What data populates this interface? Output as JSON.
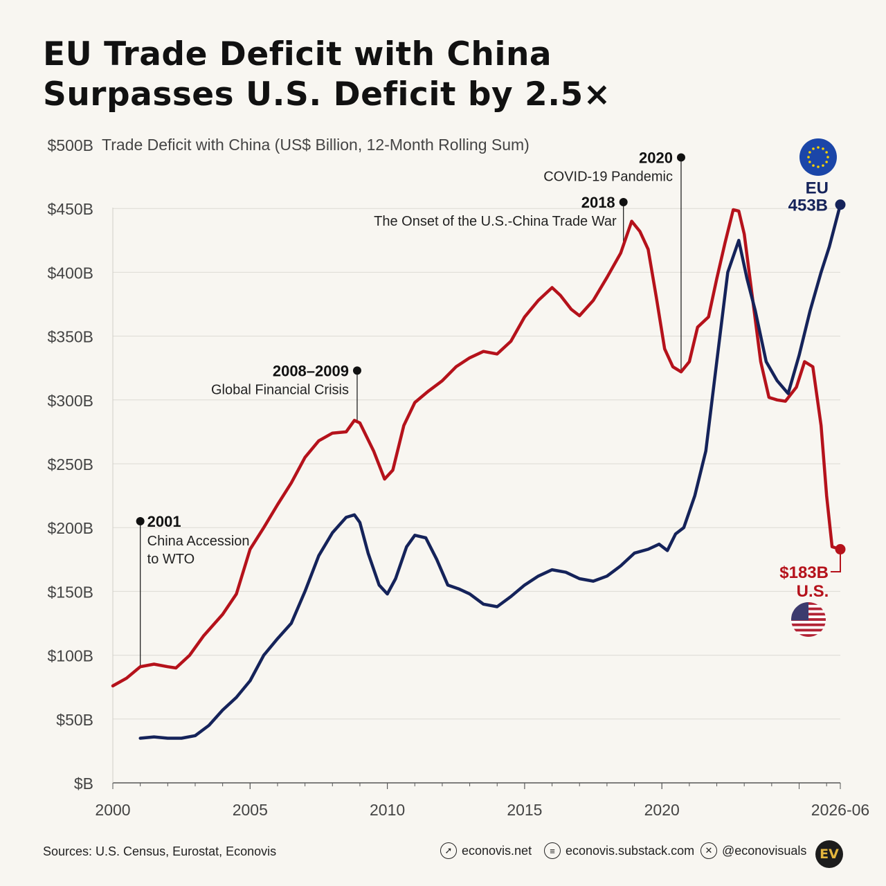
{
  "header": {
    "title_line1": "EU Trade Deficit with China",
    "title_line2": "Surpasses U.S. Deficit by 2.5×"
  },
  "footer": {
    "sources": "Sources: U.S. Census, Eurostat, Econovis",
    "links": [
      {
        "icon": "cursor-icon",
        "label": "econovis.net"
      },
      {
        "icon": "substack-icon",
        "label": "econovis.substack.com"
      },
      {
        "icon": "x-icon",
        "label": "@econovisuals"
      }
    ],
    "logo_text": "EV"
  },
  "chart_data": {
    "type": "line",
    "ylabel": "Trade Deficit with China (US$ Billion, 12-Month Rolling Sum)",
    "ylim": [
      0,
      500
    ],
    "y_ticks": [
      {
        "value": 0,
        "label": "$B"
      },
      {
        "value": 50,
        "label": "$50B"
      },
      {
        "value": 100,
        "label": "$100B"
      },
      {
        "value": 150,
        "label": "$150B"
      },
      {
        "value": 200,
        "label": "$200B"
      },
      {
        "value": 250,
        "label": "$250B"
      },
      {
        "value": 300,
        "label": "$300B"
      },
      {
        "value": 350,
        "label": "$350B"
      },
      {
        "value": 400,
        "label": "$400B"
      },
      {
        "value": 450,
        "label": "$450B"
      },
      {
        "value": 500,
        "label": "$500B"
      }
    ],
    "xlim": [
      2000,
      2026.5
    ],
    "x_ticks": [
      {
        "value": 2000,
        "label": "2000"
      },
      {
        "value": 2005,
        "label": "2005"
      },
      {
        "value": 2010,
        "label": "2010"
      },
      {
        "value": 2015,
        "label": "2015"
      },
      {
        "value": 2020,
        "label": "2020"
      },
      {
        "value": 2026.5,
        "label": "2026-06"
      }
    ],
    "grid": true,
    "colors": {
      "us": "#b5121b",
      "eu": "#15235a"
    },
    "series": [
      {
        "key": "us",
        "name": "U.S.",
        "end_label": "$183B",
        "x": [
          2000,
          2000.5,
          2001,
          2001.5,
          2002,
          2002.3,
          2002.8,
          2003.3,
          2004,
          2004.5,
          2005,
          2005.5,
          2006,
          2006.5,
          2007,
          2007.5,
          2008,
          2008.5,
          2008.8,
          2009,
          2009.5,
          2009.9,
          2010.2,
          2010.6,
          2011,
          2011.5,
          2012,
          2012.5,
          2013,
          2013.5,
          2014,
          2014.5,
          2015,
          2015.5,
          2016,
          2016.3,
          2016.7,
          2017,
          2017.5,
          2018,
          2018.5,
          2018.9,
          2019.2,
          2019.5,
          2019.8,
          2020.1,
          2020.4,
          2020.7,
          2021,
          2021.3,
          2021.7,
          2022,
          2022.3,
          2022.6,
          2022.8,
          2023,
          2023.3,
          2023.6,
          2023.9,
          2024.2,
          2024.5,
          2024.9,
          2025.2,
          2025.5,
          2025.8,
          2026.0,
          2026.2,
          2026.5
        ],
        "values": [
          76,
          82,
          91,
          93,
          91,
          90,
          100,
          115,
          132,
          148,
          183,
          200,
          218,
          235,
          255,
          268,
          274,
          275,
          284,
          282,
          260,
          238,
          245,
          280,
          298,
          307,
          315,
          326,
          333,
          338,
          336,
          346,
          365,
          378,
          388,
          382,
          371,
          366,
          378,
          396,
          415,
          440,
          432,
          418,
          380,
          340,
          326,
          322,
          330,
          357,
          365,
          395,
          423,
          449,
          448,
          430,
          380,
          330,
          302,
          300,
          299,
          310,
          330,
          326,
          280,
          225,
          185,
          183
        ]
      },
      {
        "key": "eu",
        "name": "EU",
        "end_label": "453B",
        "x": [
          2001,
          2001.5,
          2002,
          2002.5,
          2003,
          2003.5,
          2004,
          2004.5,
          2005,
          2005.5,
          2006,
          2006.5,
          2007,
          2007.5,
          2008,
          2008.5,
          2008.8,
          2009,
          2009.3,
          2009.7,
          2010,
          2010.3,
          2010.7,
          2011,
          2011.4,
          2011.8,
          2012.2,
          2012.6,
          2013,
          2013.5,
          2014,
          2014.5,
          2015,
          2015.5,
          2016,
          2016.5,
          2017,
          2017.5,
          2018,
          2018.5,
          2019,
          2019.5,
          2019.9,
          2020.2,
          2020.5,
          2020.8,
          2021.2,
          2021.6,
          2022,
          2022.4,
          2022.8,
          2023.1,
          2023.4,
          2023.8,
          2024.2,
          2024.6,
          2025,
          2025.4,
          2025.8,
          2026.1,
          2026.5
        ],
        "values": [
          35,
          36,
          35,
          35,
          37,
          45,
          57,
          67,
          80,
          100,
          113,
          125,
          150,
          178,
          196,
          208,
          210,
          204,
          180,
          155,
          148,
          160,
          185,
          194,
          192,
          175,
          155,
          152,
          148,
          140,
          138,
          146,
          155,
          162,
          167,
          165,
          160,
          158,
          162,
          170,
          180,
          183,
          187,
          182,
          195,
          200,
          225,
          260,
          330,
          400,
          425,
          395,
          370,
          330,
          315,
          305,
          335,
          370,
          400,
          420,
          453
        ]
      }
    ],
    "annotations": [
      {
        "x": 2001,
        "value": 205,
        "year": "2001",
        "line1": "China Accession",
        "line2": " to WTO"
      },
      {
        "x": 2008.9,
        "value": 323,
        "year": "2008–2009",
        "line1": "Global Financial Crisis",
        "line2": ""
      },
      {
        "x": 2018.6,
        "value": 455,
        "year": "2018",
        "line1": "The Onset of the U.S.-China Trade War",
        "line2": ""
      },
      {
        "x": 2020.7,
        "value": 490,
        "year": "2020",
        "line1": "COVID-19 Pandemic",
        "line2": ""
      }
    ]
  }
}
